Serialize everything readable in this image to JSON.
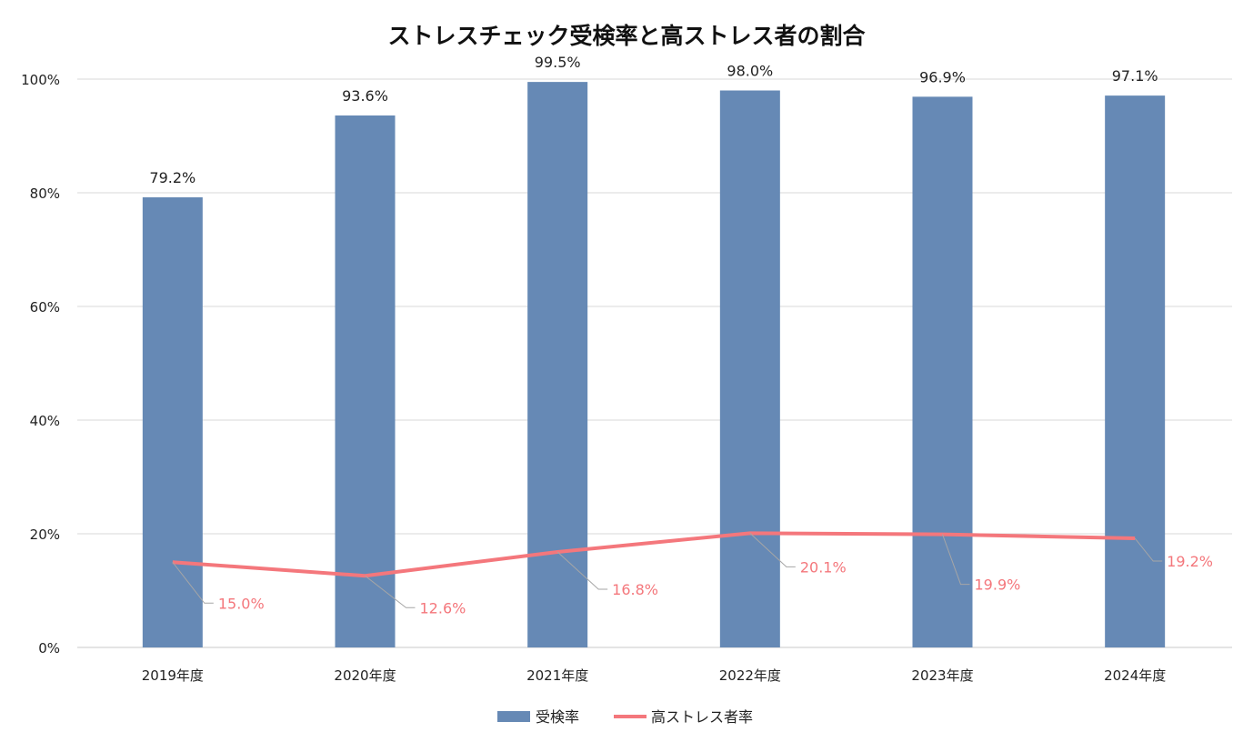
{
  "chart_data": {
    "type": "bar+line",
    "title": "ストレスチェック受検率と高ストレス者の割合",
    "categories": [
      "2019年度",
      "2020年度",
      "2021年度",
      "2022年度",
      "2023年度",
      "2024年度"
    ],
    "series": [
      {
        "name": "受検率",
        "type": "bar",
        "color": "#6689b5",
        "values": [
          79.2,
          93.6,
          99.5,
          98.0,
          96.9,
          97.1
        ],
        "labels": [
          "79.2%",
          "93.6%",
          "99.5%",
          "98.0%",
          "96.9%",
          "97.1%"
        ]
      },
      {
        "name": "高ストレス者率",
        "type": "line",
        "color": "#f4777c",
        "values": [
          15.0,
          12.6,
          16.8,
          20.1,
          19.9,
          19.2
        ],
        "labels": [
          "15.0%",
          "12.6%",
          "16.8%",
          "20.1%",
          "19.9%",
          "19.2%"
        ]
      }
    ],
    "yticks": [
      "0%",
      "20%",
      "40%",
      "60%",
      "80%",
      "100%"
    ],
    "ylim": [
      0,
      100
    ],
    "grid": true,
    "legend": "bottom"
  }
}
